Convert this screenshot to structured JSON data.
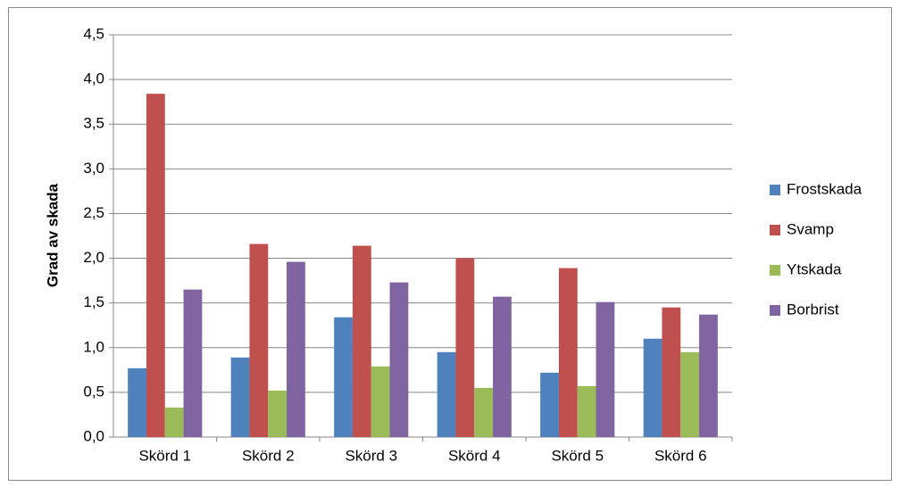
{
  "chart_data": {
    "type": "bar",
    "y_label": "Grad av skada",
    "categories": [
      "Skörd 1",
      "Skörd 2",
      "Skörd 3",
      "Skörd 4",
      "Skörd 5",
      "Skörd 6"
    ],
    "series": [
      {
        "name": "Frostskada",
        "color": "#4f81bd",
        "values": [
          0.77,
          0.89,
          1.34,
          0.95,
          0.72,
          1.1
        ]
      },
      {
        "name": "Svamp",
        "color": "#c0504d",
        "values": [
          3.84,
          2.16,
          2.14,
          2.0,
          1.89,
          1.45
        ]
      },
      {
        "name": "Ytskada",
        "color": "#9bbb59",
        "values": [
          0.33,
          0.52,
          0.79,
          0.55,
          0.57,
          0.95
        ]
      },
      {
        "name": "Borbrist",
        "color": "#8064a2",
        "values": [
          1.65,
          1.96,
          1.73,
          1.57,
          1.51,
          1.37
        ]
      }
    ],
    "ylim": [
      0,
      4.5
    ],
    "yticks": [
      {
        "value": 0,
        "label": "0,0"
      },
      {
        "value": 0.5,
        "label": "0,5"
      },
      {
        "value": 1,
        "label": "1,0"
      },
      {
        "value": 1.5,
        "label": "1,5"
      },
      {
        "value": 2,
        "label": "2,0"
      },
      {
        "value": 2.5,
        "label": "2,5"
      },
      {
        "value": 3,
        "label": "3,0"
      },
      {
        "value": 3.5,
        "label": "3,5"
      },
      {
        "value": 4,
        "label": "4,0"
      },
      {
        "value": 4.5,
        "label": "4,5"
      }
    ],
    "grid": true,
    "legend": "right"
  }
}
